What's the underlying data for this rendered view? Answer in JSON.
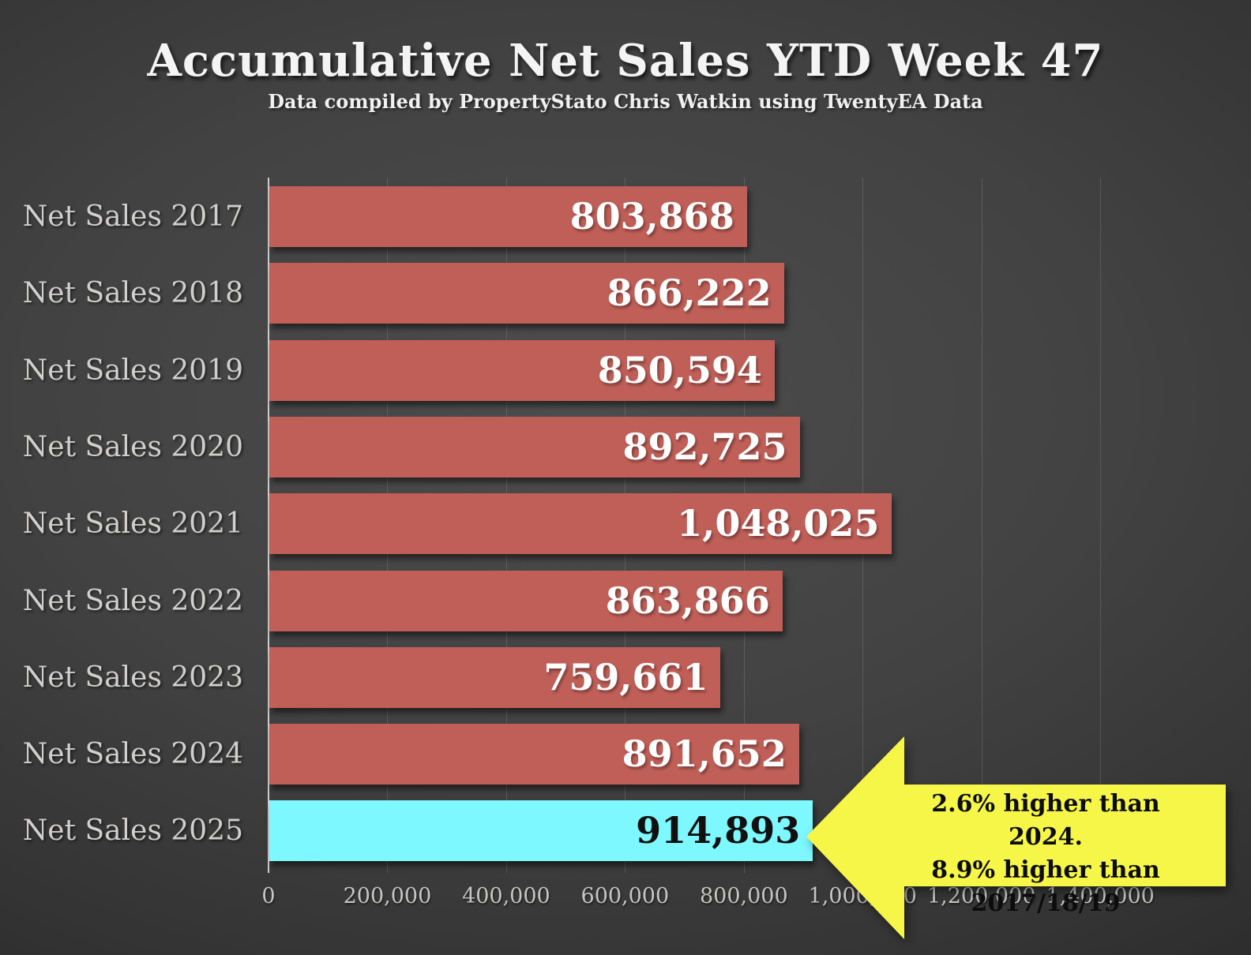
{
  "title": "Accumulative Net Sales YTD Week 47",
  "subtitle": "Data compiled by PropertyStato Chris Watkin using TwentyEA Data",
  "chart_data": {
    "type": "bar",
    "orientation": "horizontal",
    "title": "Accumulative Net Sales YTD Week 47",
    "categories": [
      "Net Sales 2017",
      "Net Sales 2018",
      "Net Sales 2019",
      "Net Sales 2020",
      "Net Sales 2021",
      "Net Sales 2022",
      "Net Sales 2023",
      "Net Sales 2024",
      "Net Sales 2025"
    ],
    "values": [
      803868,
      866222,
      850594,
      892725,
      1048025,
      863866,
      759661,
      891652,
      914893
    ],
    "value_labels": [
      "803,868",
      "866,222",
      "850,594",
      "892,725",
      "1,048,025",
      "863,866",
      "759,661",
      "891,652",
      "914,893"
    ],
    "xlim": [
      0,
      1400000
    ],
    "x_tick_labels": [
      "0",
      "200,000",
      "400,000",
      "600,000",
      "800,000",
      "1,000,000",
      "1,200,000",
      "1,400,000"
    ],
    "grid": true,
    "legend": "none",
    "highlight_index": 8,
    "bar_color": "#c05f58",
    "highlight_bar_color": "#7df8ff",
    "value_text_color": "#ffffff",
    "highlight_value_text_color": "#101010"
  },
  "annotation": {
    "lines": [
      "2.6% higher than 2024.",
      "8.9% higher than",
      "2017/18/19"
    ],
    "arrow_color": "#f6f649",
    "text_color": "#0c0c0c",
    "points_at": "Net Sales 2025"
  }
}
